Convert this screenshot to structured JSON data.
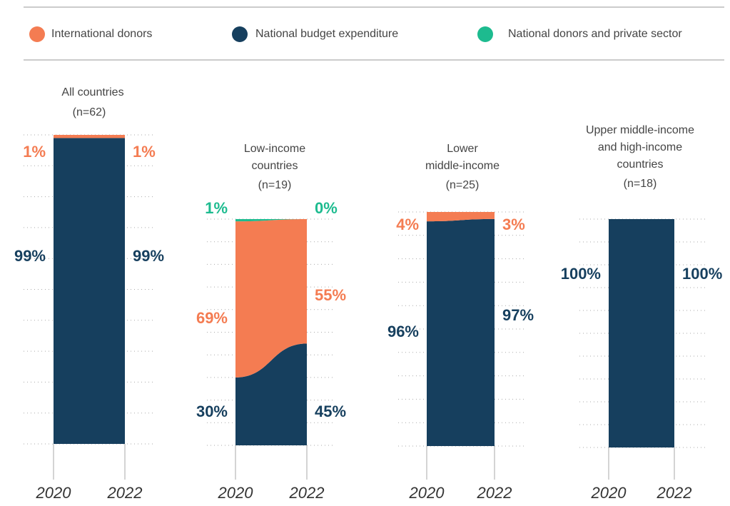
{
  "legend": [
    {
      "name": "International donors",
      "color": "#f47c52"
    },
    {
      "name": "National budget expenditure",
      "color": "#163f5e"
    },
    {
      "name": "National donors and private sector",
      "color": "#1dbb8f"
    }
  ],
  "chart_data": [
    {
      "type": "stacked-area",
      "title": [
        "All countries"
      ],
      "subtitle": "(n=62)",
      "categories": [
        "2020",
        "2022"
      ],
      "series": [
        {
          "name": "National budget expenditure",
          "values": [
            99,
            99
          ],
          "value_labels": [
            "99%",
            "99%"
          ]
        },
        {
          "name": "International donors",
          "values": [
            1,
            1
          ],
          "value_labels": [
            "1%",
            "1%"
          ]
        }
      ]
    },
    {
      "type": "stacked-area",
      "title": [
        "Low-income",
        "countries"
      ],
      "subtitle": "(n=19)",
      "categories": [
        "2020",
        "2022"
      ],
      "series": [
        {
          "name": "National budget expenditure",
          "values": [
            30,
            45
          ],
          "value_labels": [
            "30%",
            "45%"
          ]
        },
        {
          "name": "International donors",
          "values": [
            69,
            55
          ],
          "value_labels": [
            "69%",
            "55%"
          ]
        },
        {
          "name": "National donors and private sector",
          "values": [
            1,
            0
          ],
          "value_labels": [
            "1%",
            "0%"
          ]
        }
      ]
    },
    {
      "type": "stacked-area",
      "title": [
        "Lower",
        "middle-income"
      ],
      "subtitle": "(n=25)",
      "categories": [
        "2020",
        "2022"
      ],
      "series": [
        {
          "name": "National budget expenditure",
          "values": [
            96,
            97
          ],
          "value_labels": [
            "96%",
            "97%"
          ]
        },
        {
          "name": "International donors",
          "values": [
            4,
            3
          ],
          "value_labels": [
            "4%",
            "3%"
          ]
        }
      ]
    },
    {
      "type": "stacked-area",
      "title": [
        "Upper middle-income",
        "and high-income",
        "countries"
      ],
      "subtitle": "(n=18)",
      "categories": [
        "2020",
        "2022"
      ],
      "series": [
        {
          "name": "National budget expenditure",
          "values": [
            100,
            100
          ],
          "value_labels": [
            "100%",
            "100%"
          ]
        }
      ]
    }
  ]
}
